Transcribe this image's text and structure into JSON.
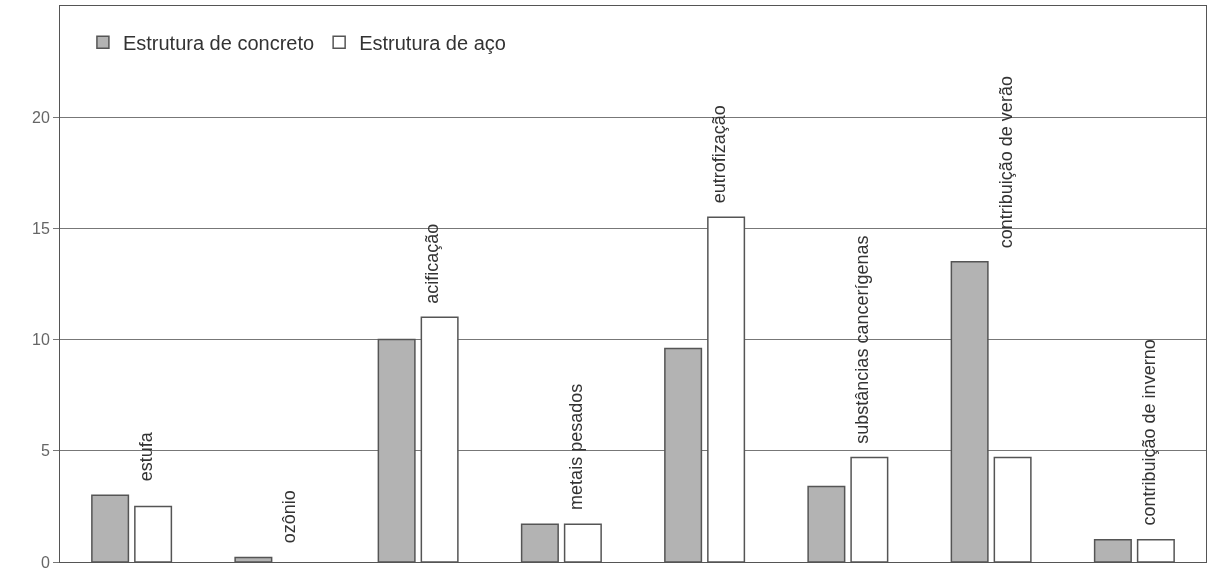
{
  "chart_data": {
    "type": "bar",
    "categories": [
      "estufa",
      "ozônio",
      "acificação",
      "metais pesados",
      "eutrofização",
      "substâncias cancerígenas",
      "contribuição de verão",
      "contribuição de inverno"
    ],
    "series": [
      {
        "name": "Estrutura de concreto",
        "color": "#b3b3b3",
        "values": [
          3.0,
          0.2,
          10.0,
          1.7,
          9.6,
          3.4,
          13.5,
          1.0
        ]
      },
      {
        "name": "Estrutura de aço",
        "color": "#ffffff",
        "values": [
          2.5,
          null,
          11.0,
          1.7,
          15.5,
          4.7,
          4.7,
          1.0
        ]
      }
    ],
    "ylim": [
      0,
      25
    ],
    "yticks": [
      0,
      5,
      10,
      15,
      20
    ],
    "grid": "y",
    "legend": "top left"
  }
}
